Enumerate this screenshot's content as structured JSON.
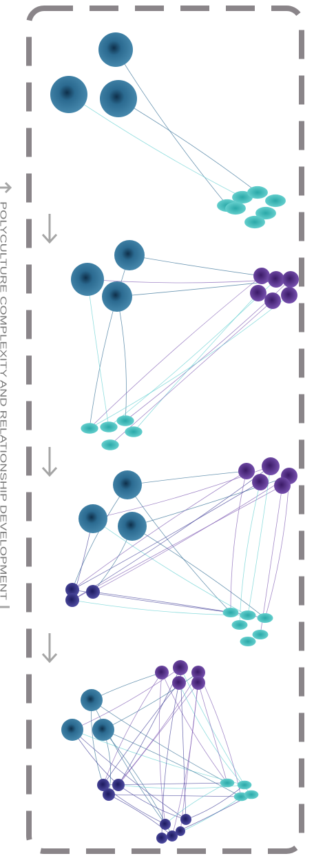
{
  "side_label": "POLYCULTURE COMPLEXITY AND RELATIONSHIP DEVELOPMENT"
}
